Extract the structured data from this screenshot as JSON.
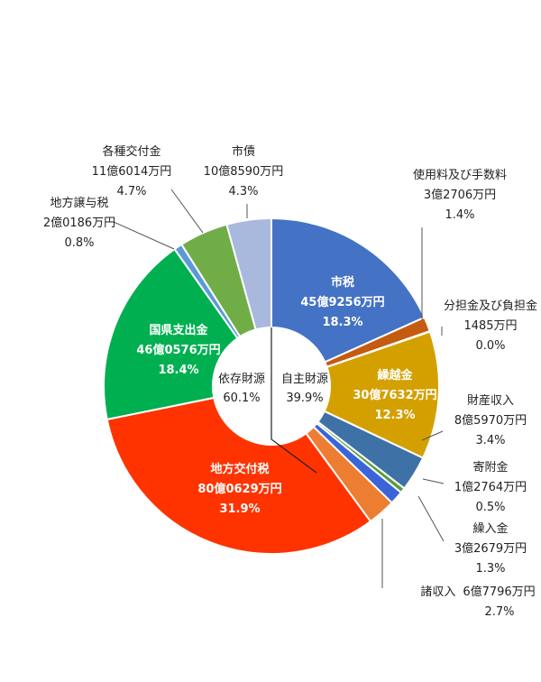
{
  "chart_data": {
    "type": "pie",
    "title": "",
    "slices": [
      {
        "name": "市税",
        "amount": "45億9256万円",
        "percent_label": "18.3%",
        "percent": 18.3,
        "color": "#4472C4",
        "label_style": "light"
      },
      {
        "name": "使用料及び手数料",
        "amount": "3億2706万円",
        "percent_label": "1.4%",
        "percent": 1.4,
        "color": "#C55A11",
        "label_style": "dark"
      },
      {
        "name": "分担金及び負担金",
        "amount": "1485万円",
        "percent_label": "0.0%",
        "percent": 0.06,
        "color": "#A5A5A5",
        "label_style": "dark"
      },
      {
        "name": "繰越金",
        "amount": "30億7632万円",
        "percent_label": "12.3%",
        "percent": 12.3,
        "color": "#D4A000",
        "label_style": "light"
      },
      {
        "name": "財産収入",
        "amount": "8億5970万円",
        "percent_label": "3.4%",
        "percent": 3.4,
        "color": "#3E72A6",
        "label_style": "dark"
      },
      {
        "name": "寄附金",
        "amount": "1億2764万円",
        "percent_label": "0.5%",
        "percent": 0.5,
        "color": "#5B9B3C",
        "label_style": "dark"
      },
      {
        "name": "繰入金",
        "amount": "3億2679万円",
        "percent_label": "1.3%",
        "percent": 1.3,
        "color": "#3A64D8",
        "label_style": "dark"
      },
      {
        "name": "諸収入",
        "amount": "6億7796万円",
        "percent_label": "2.7%",
        "percent": 2.7,
        "color": "#ED7D31",
        "label_style": "dark"
      },
      {
        "name": "地方交付税",
        "amount": "80億0629万円",
        "percent_label": "31.9%",
        "percent": 31.9,
        "color": "#FF3300",
        "label_style": "light"
      },
      {
        "name": "国県支出金",
        "amount": "46億0576万円",
        "percent_label": "18.4%",
        "percent": 18.4,
        "color": "#00B050",
        "label_style": "light"
      },
      {
        "name": "地方譲与税",
        "amount": "2億0186万円",
        "percent_label": "0.8%",
        "percent": 0.8,
        "color": "#5B9BD5",
        "label_style": "dark"
      },
      {
        "name": "各種交付金",
        "amount": "11億6014万円",
        "percent_label": "4.7%",
        "percent": 4.7,
        "color": "#70AD47",
        "label_style": "dark"
      },
      {
        "name": "市債",
        "amount": "10億8590万円",
        "percent_label": "4.3%",
        "percent": 4.3,
        "color": "#A9B8DD",
        "label_style": "dark"
      }
    ],
    "center_labels": [
      {
        "name": "依存財源",
        "percent_label": "60.1%"
      },
      {
        "name": "自主財源",
        "percent_label": "39.9%"
      }
    ]
  }
}
